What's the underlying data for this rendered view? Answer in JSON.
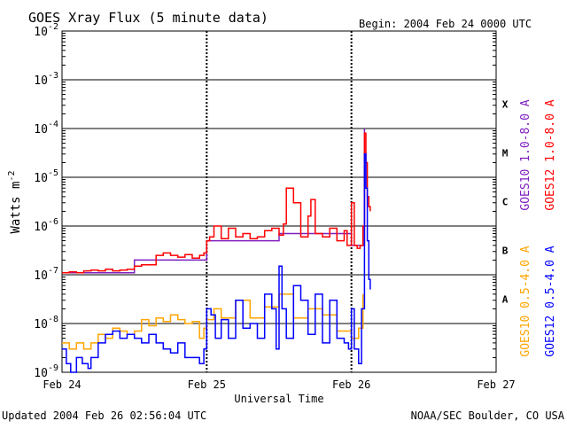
{
  "chart_data": {
    "type": "line",
    "title": "GOES Xray Flux (5 minute data)",
    "begin_label": "Begin:  2004 Feb 24 0000 UTC",
    "xlabel": "Universal Time",
    "ylabel": "Watts m",
    "ylabel_exponent": "-2",
    "x_tick_labels": [
      "Feb 24",
      "Feb 25",
      "Feb 26",
      "Feb 27"
    ],
    "x_tick_values_days": [
      0,
      1,
      2,
      3
    ],
    "x_range_days": [
      0,
      3
    ],
    "y_scale": "log",
    "y_range": [
      1e-09,
      0.01
    ],
    "y_tick_labels": [
      {
        "base": "10",
        "exp": "-9",
        "value": 1e-09
      },
      {
        "base": "10",
        "exp": "-8",
        "value": 1e-08
      },
      {
        "base": "10",
        "exp": "-7",
        "value": 1e-07
      },
      {
        "base": "10",
        "exp": "-6",
        "value": 1e-06
      },
      {
        "base": "10",
        "exp": "-5",
        "value": 1e-05
      },
      {
        "base": "10",
        "exp": "-4",
        "value": 0.0001
      },
      {
        "base": "10",
        "exp": "-3",
        "value": 0.001
      },
      {
        "base": "10",
        "exp": "-2",
        "value": 0.01
      }
    ],
    "flare_classes": [
      {
        "label": "A",
        "band_low": 1e-08,
        "band_high": 1e-07
      },
      {
        "label": "B",
        "band_low": 1e-07,
        "band_high": 1e-06
      },
      {
        "label": "C",
        "band_low": 1e-06,
        "band_high": 1e-05
      },
      {
        "label": "M",
        "band_low": 1e-05,
        "band_high": 0.0001
      },
      {
        "label": "X",
        "band_low": 0.0001,
        "band_high": 0.001
      }
    ],
    "grid": "horizontal at each decade; dashed vertical at day boundaries",
    "legend_placement": "right side, rotated vertical",
    "series": [
      {
        "name": "GOES10 1.0-8.0 A",
        "color": "#7f1fbf",
        "x": [
          0,
          0.5,
          1.0,
          1.5,
          2.0,
          2.09
        ],
        "y": [
          1.1e-07,
          2e-07,
          5e-07,
          7e-07,
          4e-07,
          0.0001
        ]
      },
      {
        "name": "GOES12 1.0-8.0 A",
        "color": "#ff0000",
        "x": [
          0.0,
          0.05,
          0.1,
          0.15,
          0.2,
          0.25,
          0.3,
          0.35,
          0.4,
          0.45,
          0.5,
          0.55,
          0.6,
          0.65,
          0.7,
          0.75,
          0.8,
          0.85,
          0.9,
          0.95,
          0.98,
          1.0,
          1.02,
          1.05,
          1.1,
          1.15,
          1.2,
          1.25,
          1.3,
          1.35,
          1.4,
          1.45,
          1.5,
          1.53,
          1.55,
          1.6,
          1.65,
          1.7,
          1.72,
          1.75,
          1.8,
          1.85,
          1.9,
          1.93,
          1.95,
          1.97,
          2.0,
          2.02,
          2.04,
          2.06,
          2.08,
          2.09,
          2.1,
          2.11,
          2.12,
          2.13
        ],
        "y": [
          1.1e-07,
          1.15e-07,
          1.1e-07,
          1.2e-07,
          1.25e-07,
          1.2e-07,
          1.3e-07,
          1.2e-07,
          1.25e-07,
          1.3e-07,
          1.5e-07,
          1.6e-07,
          1.6e-07,
          2.5e-07,
          2.8e-07,
          2.5e-07,
          2.3e-07,
          2.6e-07,
          2.2e-07,
          2.5e-07,
          2.8e-07,
          5e-07,
          6e-07,
          1e-06,
          5.5e-07,
          9e-07,
          6e-07,
          7e-07,
          5.5e-07,
          6e-07,
          8e-07,
          9e-07,
          6.5e-07,
          1.1e-06,
          6e-06,
          3e-06,
          6e-07,
          1.6e-06,
          3.5e-06,
          7e-07,
          6e-07,
          9e-07,
          5e-07,
          5e-07,
          8e-07,
          4e-07,
          3e-06,
          4e-07,
          3.5e-07,
          4e-07,
          1e-06,
          8e-05,
          2e-05,
          4e-06,
          2.5e-06,
          2e-06
        ]
      },
      {
        "name": "GOES10 0.5-4.0 A",
        "color": "#ffa500",
        "x": [
          0.0,
          0.05,
          0.1,
          0.15,
          0.2,
          0.25,
          0.3,
          0.35,
          0.4,
          0.45,
          0.5,
          0.55,
          0.6,
          0.65,
          0.7,
          0.75,
          0.8,
          0.85,
          0.9,
          0.95,
          0.98,
          1.0,
          1.05,
          1.1,
          1.2,
          1.3,
          1.4,
          1.5,
          1.6,
          1.7,
          1.8,
          1.9,
          2.0,
          2.05,
          2.08
        ],
        "y": [
          4e-09,
          3e-09,
          4e-09,
          3e-09,
          4e-09,
          6e-09,
          5e-09,
          8e-09,
          7e-09,
          6e-09,
          7e-09,
          1.2e-08,
          9e-09,
          1.3e-08,
          1.1e-08,
          1.5e-08,
          1.2e-08,
          1e-08,
          1.1e-08,
          5e-09,
          8e-09,
          1.2e-08,
          2e-08,
          1.3e-08,
          3e-08,
          1.3e-08,
          2.2e-08,
          4e-08,
          1.3e-08,
          2e-08,
          1.5e-08,
          7e-09,
          5e-09,
          8e-09,
          4e-08
        ]
      },
      {
        "name": "GOES12 0.5-4.0 A",
        "color": "#0000ff",
        "x": [
          0.0,
          0.03,
          0.06,
          0.1,
          0.14,
          0.18,
          0.2,
          0.25,
          0.3,
          0.35,
          0.4,
          0.45,
          0.5,
          0.55,
          0.6,
          0.65,
          0.7,
          0.75,
          0.8,
          0.85,
          0.9,
          0.95,
          0.98,
          1.0,
          1.03,
          1.06,
          1.1,
          1.15,
          1.2,
          1.25,
          1.3,
          1.35,
          1.4,
          1.45,
          1.48,
          1.5,
          1.52,
          1.55,
          1.6,
          1.65,
          1.7,
          1.75,
          1.8,
          1.85,
          1.9,
          1.95,
          1.98,
          2.0,
          2.02,
          2.05,
          2.07,
          2.09,
          2.1,
          2.11,
          2.12,
          2.13
        ],
        "y": [
          3e-09,
          1.5e-09,
          1e-09,
          2e-09,
          1.5e-09,
          1.2e-09,
          2e-09,
          4e-09,
          6e-09,
          7e-09,
          5e-09,
          6e-09,
          5e-09,
          4e-09,
          6e-09,
          4e-09,
          3e-09,
          2.5e-09,
          4e-09,
          2e-09,
          2e-09,
          1.5e-09,
          3e-09,
          2e-08,
          1.5e-08,
          5e-09,
          1.2e-08,
          5e-09,
          3e-08,
          8e-09,
          1e-08,
          5e-09,
          4e-08,
          2e-08,
          3e-09,
          1.5e-07,
          2e-08,
          5e-09,
          6e-08,
          3e-08,
          6e-09,
          4e-08,
          4e-09,
          3e-08,
          5e-09,
          4e-09,
          3e-09,
          2e-08,
          3e-09,
          1.5e-09,
          2e-08,
          3e-05,
          6e-06,
          5e-07,
          8e-08,
          5e-08
        ]
      }
    ]
  },
  "footer": {
    "updated": "Updated 2004 Feb 26 02:56:04 UTC",
    "credit": "NOAA/SEC Boulder, CO USA"
  }
}
